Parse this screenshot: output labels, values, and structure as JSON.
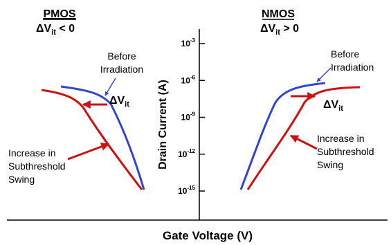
{
  "chart_data": {
    "type": "line",
    "xlabel": "Gate Voltage (V)",
    "ylabel": "Drain Current (A)",
    "y_scale": "log",
    "y_ticks": [
      {
        "base": "10",
        "exp": "-3"
      },
      {
        "base": "10",
        "exp": "-6"
      },
      {
        "base": "10",
        "exp": "-9"
      },
      {
        "base": "10",
        "exp": "-12"
      },
      {
        "base": "10",
        "exp": "-15"
      }
    ],
    "colors": {
      "before": "#3344cc",
      "after": "#cc1111"
    },
    "panels": [
      {
        "title": "PMOS",
        "condition": {
          "prefix": "ΔV",
          "sub": "it",
          "suffix": " < 0"
        },
        "delta_label": {
          "prefix": "ΔV",
          "sub": "it"
        },
        "annotations": [
          {
            "lines": [
              "Before",
              "Irradiation"
            ]
          },
          {
            "lines": [
              "Increase in",
              "Subthreshold",
              "Swing"
            ]
          }
        ]
      },
      {
        "title": "NMOS",
        "condition": {
          "prefix": "ΔV",
          "sub": "it",
          "suffix": " > 0"
        },
        "delta_label": {
          "prefix": "ΔV",
          "sub": "it"
        },
        "annotations": [
          {
            "lines": [
              "Before",
              "Irradiation"
            ]
          },
          {
            "lines": [
              "Increase in",
              "Subthreshold",
              "Swing"
            ]
          }
        ]
      }
    ]
  }
}
